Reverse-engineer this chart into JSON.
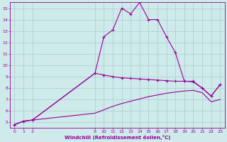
{
  "xlabel": "Windchill (Refroidissement éolien,°C)",
  "background_color": "#ceeaea",
  "line_color": "#990099",
  "grid_color": "#aacccc",
  "xlim": [
    -0.5,
    23.5
  ],
  "ylim": [
    4.5,
    15.5
  ],
  "yticks": [
    5,
    6,
    7,
    8,
    9,
    10,
    11,
    12,
    13,
    14,
    15
  ],
  "xticks": [
    0,
    1,
    2,
    9,
    10,
    11,
    12,
    13,
    14,
    15,
    16,
    17,
    18,
    19,
    20,
    21,
    22,
    23
  ],
  "series1_x": [
    0,
    1,
    2,
    9,
    10,
    11,
    12,
    13,
    14,
    15,
    16,
    17,
    18,
    19,
    20,
    21,
    22,
    23
  ],
  "series1_y": [
    4.8,
    5.1,
    5.2,
    9.3,
    12.5,
    13.1,
    15.0,
    14.5,
    15.5,
    14.0,
    14.0,
    12.5,
    11.1,
    8.6,
    8.6,
    8.0,
    7.3,
    8.3
  ],
  "series2_x": [
    0,
    1,
    2,
    9,
    10,
    11,
    12,
    13,
    14,
    15,
    16,
    17,
    18,
    19,
    20,
    21,
    22,
    23
  ],
  "series2_y": [
    4.8,
    5.1,
    5.2,
    9.3,
    9.15,
    9.0,
    8.9,
    8.85,
    8.8,
    8.75,
    8.7,
    8.65,
    8.6,
    8.6,
    8.55,
    8.0,
    7.3,
    8.3
  ],
  "series3_x": [
    0,
    1,
    2,
    9,
    10,
    11,
    12,
    13,
    14,
    15,
    16,
    17,
    18,
    19,
    20,
    21,
    22,
    23
  ],
  "series3_y": [
    4.8,
    5.1,
    5.2,
    5.8,
    6.1,
    6.4,
    6.65,
    6.85,
    7.05,
    7.25,
    7.4,
    7.55,
    7.65,
    7.75,
    7.8,
    7.6,
    6.8,
    7.0
  ]
}
